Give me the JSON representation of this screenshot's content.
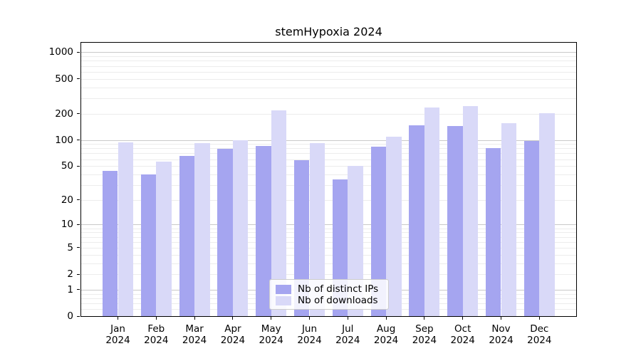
{
  "chart_data": {
    "type": "bar",
    "title": "stemHypoxia 2024",
    "categories": [
      "Jan",
      "Feb",
      "Mar",
      "Apr",
      "May",
      "Jun",
      "Jul",
      "Aug",
      "Sep",
      "Oct",
      "Nov",
      "Dec"
    ],
    "x_year": "2024",
    "series": [
      {
        "name": "Nb of distinct IPs",
        "color": "#a5a5f0",
        "values": [
          44,
          40,
          65,
          79,
          86,
          58,
          35,
          84,
          147,
          143,
          81,
          97
        ]
      },
      {
        "name": "Nb of downloads",
        "color": "#d9d9f8",
        "values": [
          94,
          56,
          92,
          100,
          216,
          92,
          50,
          108,
          236,
          245,
          155,
          202
        ]
      }
    ],
    "y_ticks": [
      0,
      1,
      2,
      5,
      10,
      20,
      50,
      100,
      200,
      500,
      1000
    ],
    "scale": "log1p",
    "ylim": [
      0,
      1300
    ],
    "xlabel": "",
    "ylabel": "",
    "grid": true,
    "legend_position": "lower center",
    "colors": {
      "major_grid": "#c9c9c9",
      "minor_grid": "#ececec",
      "axis": "#000000",
      "background": "#ffffff"
    }
  }
}
